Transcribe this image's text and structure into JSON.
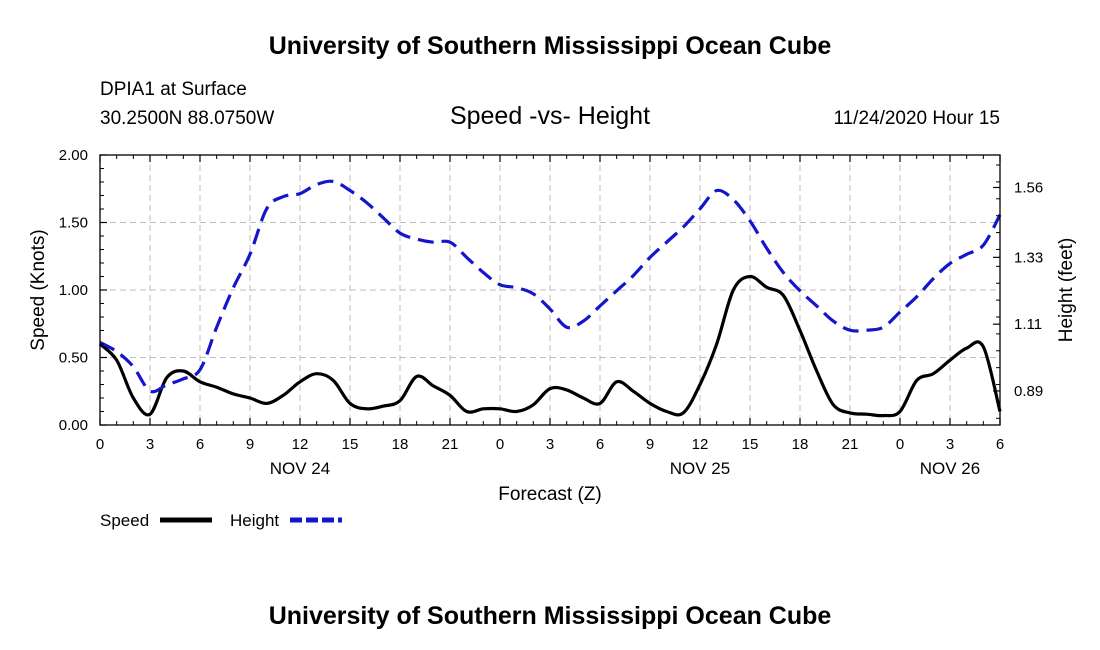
{
  "header": {
    "title": "University of Southern Mississippi Ocean Cube",
    "station": "DPIA1 at Surface",
    "coords": "30.2500N 88.0750W",
    "chart_title": "Speed -vs- Height",
    "datetime": "11/24/2020 Hour 15"
  },
  "footer": {
    "title": "University of Southern Mississippi Ocean Cube"
  },
  "colors": {
    "speed": "#000000",
    "height": "#1515cc",
    "grid": "#bdbdbd"
  },
  "chart_data": {
    "type": "line",
    "title": "Speed -vs- Height",
    "xlabel": "Forecast (Z)",
    "ylabel": "Speed (Knots)",
    "y2label": "Height (feet)",
    "xlim": [
      0,
      54
    ],
    "ylim": [
      0,
      2.0
    ],
    "y2lim": [
      0.778,
      1.667
    ],
    "x_ticks": [
      0,
      3,
      6,
      9,
      12,
      15,
      18,
      21,
      24,
      27,
      30,
      33,
      36,
      39,
      42,
      45,
      48,
      51,
      54
    ],
    "x_tick_labels": [
      "0",
      "3",
      "6",
      "9",
      "12",
      "15",
      "18",
      "21",
      "0",
      "3",
      "6",
      "9",
      "12",
      "15",
      "18",
      "21",
      "0",
      "3",
      "6"
    ],
    "day_labels": [
      {
        "x": 12,
        "label": "NOV 24"
      },
      {
        "x": 36,
        "label": "NOV 25"
      },
      {
        "x": 51,
        "label": "NOV 26"
      }
    ],
    "y_ticks": [
      0,
      0.5,
      1.0,
      1.5,
      2.0
    ],
    "y_tick_labels": [
      "0.00",
      "0.50",
      "1.00",
      "1.50",
      "2.00"
    ],
    "y2_ticks": [
      0.89,
      1.11,
      1.33,
      1.56
    ],
    "y2_tick_labels": [
      "0.89",
      "1.11",
      "1.33",
      "1.56"
    ],
    "grid": true,
    "legend": [
      {
        "name": "Speed",
        "style": "solid"
      },
      {
        "name": "Height",
        "style": "dashed"
      }
    ],
    "series": [
      {
        "name": "Speed",
        "axis": "left",
        "style": "solid",
        "x": [
          0,
          1,
          2,
          3,
          4,
          5,
          6,
          7,
          8,
          9,
          10,
          11,
          12,
          13,
          14,
          15,
          16,
          17,
          18,
          19,
          20,
          21,
          22,
          23,
          24,
          25,
          26,
          27,
          28,
          29,
          30,
          31,
          32,
          33,
          34,
          35,
          36,
          37,
          38,
          39,
          40,
          41,
          42,
          43,
          44,
          45,
          46,
          47,
          48,
          49,
          50,
          51,
          52,
          53,
          54
        ],
        "values": [
          0.6,
          0.48,
          0.2,
          0.08,
          0.35,
          0.4,
          0.32,
          0.28,
          0.23,
          0.2,
          0.16,
          0.22,
          0.32,
          0.38,
          0.33,
          0.16,
          0.12,
          0.14,
          0.18,
          0.36,
          0.29,
          0.22,
          0.1,
          0.12,
          0.12,
          0.1,
          0.15,
          0.27,
          0.26,
          0.2,
          0.16,
          0.32,
          0.25,
          0.16,
          0.1,
          0.09,
          0.3,
          0.6,
          1.0,
          1.1,
          1.02,
          0.96,
          0.7,
          0.4,
          0.15,
          0.09,
          0.08,
          0.07,
          0.1,
          0.33,
          0.38,
          0.48,
          0.57,
          0.58,
          0.1
        ]
      },
      {
        "name": "Height",
        "axis": "right",
        "style": "dashed",
        "x": [
          0,
          1,
          2,
          3,
          4,
          5,
          6,
          7,
          8,
          9,
          10,
          11,
          12,
          13,
          14,
          15,
          16,
          17,
          18,
          19,
          20,
          21,
          22,
          23,
          24,
          25,
          26,
          27,
          28,
          29,
          30,
          31,
          32,
          33,
          34,
          35,
          36,
          37,
          38,
          39,
          40,
          41,
          42,
          43,
          44,
          45,
          46,
          47,
          48,
          49,
          50,
          51,
          52,
          53,
          54
        ],
        "values": [
          1.05,
          1.02,
          0.97,
          0.89,
          0.91,
          0.93,
          0.96,
          1.1,
          1.23,
          1.34,
          1.49,
          1.53,
          1.54,
          1.57,
          1.58,
          1.55,
          1.51,
          1.46,
          1.41,
          1.39,
          1.38,
          1.38,
          1.33,
          1.28,
          1.24,
          1.23,
          1.21,
          1.16,
          1.1,
          1.12,
          1.17,
          1.22,
          1.27,
          1.33,
          1.38,
          1.43,
          1.49,
          1.55,
          1.52,
          1.45,
          1.36,
          1.28,
          1.22,
          1.17,
          1.12,
          1.09,
          1.09,
          1.1,
          1.15,
          1.2,
          1.26,
          1.31,
          1.34,
          1.37,
          1.47
        ]
      }
    ]
  }
}
